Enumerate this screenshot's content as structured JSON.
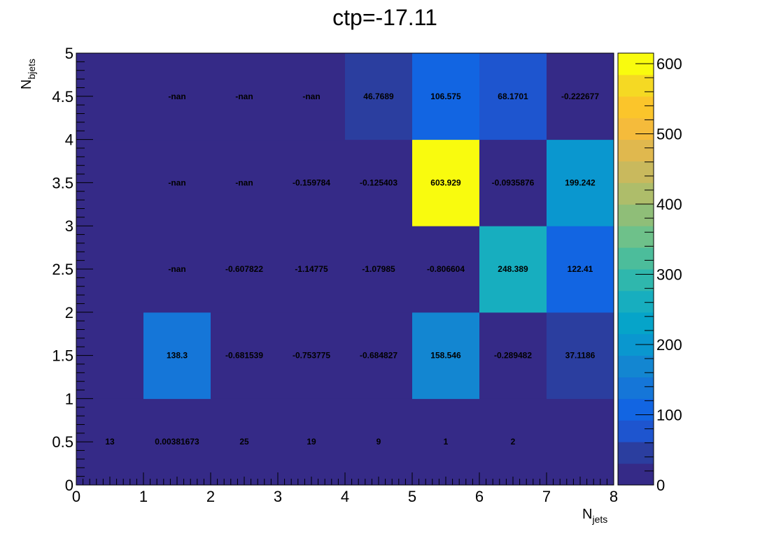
{
  "chart_data": {
    "type": "heatmap",
    "title": "ctp=-17.11",
    "xlabel": "N",
    "xlabel_sub": "jets",
    "ylabel": "N",
    "ylabel_sub": "bjets",
    "xlim": [
      0,
      8
    ],
    "ylim": [
      0,
      5
    ],
    "x_edges": [
      0,
      1,
      2,
      3,
      4,
      5,
      6,
      7,
      8
    ],
    "y_edges": [
      0,
      1,
      2,
      3,
      4,
      5
    ],
    "x_tick_labels": [
      "0",
      "1",
      "2",
      "3",
      "4",
      "5",
      "6",
      "7",
      "8"
    ],
    "y_tick_labels": [
      "0",
      "0.5",
      "1",
      "1.5",
      "2",
      "2.5",
      "3",
      "3.5",
      "4",
      "4.5",
      "5"
    ],
    "colorbar": {
      "min": 0,
      "max": 615,
      "tick_values": [
        0,
        100,
        200,
        300,
        400,
        500,
        600
      ],
      "tick_labels": [
        "0",
        "100",
        "200",
        "300",
        "400",
        "500",
        "600"
      ],
      "levels": 20
    },
    "colormap": [
      "#352a87",
      "#2b3e9f",
      "#1e55cf",
      "#1265e2",
      "#1576d8",
      "#1386d1",
      "#0a97cf",
      "#06a4c9",
      "#17aebf",
      "#2fb7ad",
      "#4cbd9b",
      "#6ec18a",
      "#8fbe78",
      "#aebd6a",
      "#c9b95d",
      "#e0b84e",
      "#f5bb3b",
      "#fbc52b",
      "#f5d923",
      "#f9fb0e"
    ],
    "nan_color": "#352a87",
    "cells": [
      {
        "x": 0,
        "y": 0,
        "value": 13,
        "label": "13"
      },
      {
        "x": 1,
        "y": 0,
        "value": 0.00381673,
        "label": "0.00381673"
      },
      {
        "x": 2,
        "y": 0,
        "value": 25,
        "label": "25"
      },
      {
        "x": 3,
        "y": 0,
        "value": 19,
        "label": "19"
      },
      {
        "x": 4,
        "y": 0,
        "value": 9,
        "label": "9"
      },
      {
        "x": 5,
        "y": 0,
        "value": 1,
        "label": "1"
      },
      {
        "x": 6,
        "y": 0,
        "value": 2,
        "label": "2"
      },
      {
        "x": 7,
        "y": 0,
        "value": 0,
        "label": ""
      },
      {
        "x": 0,
        "y": 1,
        "value": 0,
        "label": ""
      },
      {
        "x": 1,
        "y": 1,
        "value": 138.3,
        "label": "138.3"
      },
      {
        "x": 2,
        "y": 1,
        "value": -0.681539,
        "label": "-0.681539"
      },
      {
        "x": 3,
        "y": 1,
        "value": -0.753775,
        "label": "-0.753775"
      },
      {
        "x": 4,
        "y": 1,
        "value": -0.684827,
        "label": "-0.684827"
      },
      {
        "x": 5,
        "y": 1,
        "value": 158.546,
        "label": "158.546"
      },
      {
        "x": 6,
        "y": 1,
        "value": -0.289482,
        "label": "-0.289482"
      },
      {
        "x": 7,
        "y": 1,
        "value": 37.1186,
        "label": "37.1186"
      },
      {
        "x": 0,
        "y": 2,
        "value": 0,
        "label": ""
      },
      {
        "x": 1,
        "y": 2,
        "value": null,
        "label": "-nan"
      },
      {
        "x": 2,
        "y": 2,
        "value": -0.607822,
        "label": "-0.607822"
      },
      {
        "x": 3,
        "y": 2,
        "value": -1.14775,
        "label": "-1.14775"
      },
      {
        "x": 4,
        "y": 2,
        "value": -1.07985,
        "label": "-1.07985"
      },
      {
        "x": 5,
        "y": 2,
        "value": -0.806604,
        "label": "-0.806604"
      },
      {
        "x": 6,
        "y": 2,
        "value": 248.389,
        "label": "248.389"
      },
      {
        "x": 7,
        "y": 2,
        "value": 122.41,
        "label": "122.41"
      },
      {
        "x": 0,
        "y": 3,
        "value": 0,
        "label": ""
      },
      {
        "x": 1,
        "y": 3,
        "value": null,
        "label": "-nan"
      },
      {
        "x": 2,
        "y": 3,
        "value": null,
        "label": "-nan"
      },
      {
        "x": 3,
        "y": 3,
        "value": -0.159784,
        "label": "-0.159784"
      },
      {
        "x": 4,
        "y": 3,
        "value": -0.125403,
        "label": "-0.125403"
      },
      {
        "x": 5,
        "y": 3,
        "value": 603.929,
        "label": "603.929"
      },
      {
        "x": 6,
        "y": 3,
        "value": -0.0935876,
        "label": "-0.0935876"
      },
      {
        "x": 7,
        "y": 3,
        "value": 199.242,
        "label": "199.242"
      },
      {
        "x": 0,
        "y": 4,
        "value": 0,
        "label": ""
      },
      {
        "x": 1,
        "y": 4,
        "value": null,
        "label": "-nan"
      },
      {
        "x": 2,
        "y": 4,
        "value": null,
        "label": "-nan"
      },
      {
        "x": 3,
        "y": 4,
        "value": null,
        "label": "-nan"
      },
      {
        "x": 4,
        "y": 4,
        "value": 46.7689,
        "label": "46.7689"
      },
      {
        "x": 5,
        "y": 4,
        "value": 106.575,
        "label": "106.575"
      },
      {
        "x": 6,
        "y": 4,
        "value": 68.1701,
        "label": "68.1701"
      },
      {
        "x": 7,
        "y": 4,
        "value": -0.222677,
        "label": "-0.222677"
      }
    ]
  }
}
